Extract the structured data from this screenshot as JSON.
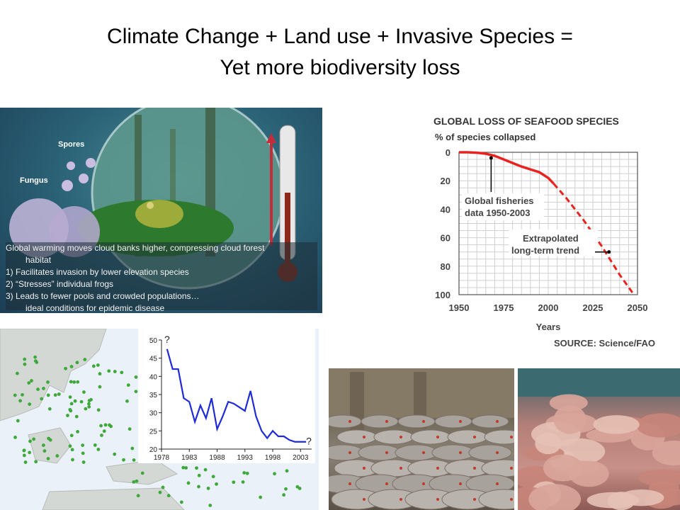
{
  "slide": {
    "title_line1": "Climate Change + Land use + Invasive Species =",
    "title_line2": "Yet more biodiversity loss"
  },
  "frog_panel": {
    "label_spores": "Spores",
    "label_fungus": "Fungus",
    "caption": [
      "Global warming moves cloud banks higher, compressing cloud forest",
      "habitat",
      "1)      Facilitates invasion by lower elevation species",
      "2)      “Stresses” individual frogs",
      "3)      Leads to fewer pools and crowded populations…",
      "         ideal conditions for epidemic disease"
    ]
  },
  "chart_data": [
    {
      "type": "line",
      "title": "GLOBAL LOSS OF SEAFOOD SPECIES",
      "ylabel": "% of species collapsed",
      "xlabel": "Years",
      "source": "SOURCE: Science/FAO",
      "x_ticks": [
        "1950",
        "1975",
        "2000",
        "2025",
        "2050"
      ],
      "y_ticks": [
        "0",
        "20",
        "40",
        "60",
        "80",
        "100"
      ],
      "xlim": [
        1950,
        2050
      ],
      "ylim": [
        0,
        100
      ],
      "y_inverted": true,
      "grid": true,
      "annotations": [
        {
          "text_lines": [
            "Global fisheries",
            "data 1950-2003"
          ],
          "x": 1968,
          "y": 4
        },
        {
          "text_lines": [
            "Extrapolated",
            "long-term trend"
          ],
          "x": 2034,
          "y": 75
        }
      ],
      "series": [
        {
          "name": "",
          "style": "solid",
          "color": "#e8231f",
          "x": [
            1950,
            1955,
            1960,
            1965,
            1970,
            1975,
            1980,
            1985,
            1990,
            1995,
            2000,
            2003
          ],
          "y": [
            0,
            0,
            0.3,
            1,
            2.5,
            5,
            7.5,
            10,
            12,
            14,
            18,
            22
          ]
        },
        {
          "name": "",
          "style": "dashed",
          "color": "#e8231f",
          "x": [
            2003,
            2010,
            2020,
            2030,
            2040,
            2048
          ],
          "y": [
            22,
            32,
            48,
            66,
            86,
            100
          ]
        }
      ]
    },
    {
      "type": "line",
      "title": "",
      "x_ticks": [
        "1978",
        "1983",
        "1988",
        "1993",
        "1998",
        "2003"
      ],
      "y_ticks": [
        "20",
        "25",
        "30",
        "35",
        "40",
        "45",
        "50"
      ],
      "xlim": [
        1978,
        2005
      ],
      "ylim": [
        20,
        50
      ],
      "grid": false,
      "annotations": [
        {
          "text": "?",
          "x": 1979,
          "y": 50
        },
        {
          "text": "?",
          "x": 2004.5,
          "y": 22
        }
      ],
      "series": [
        {
          "name": "",
          "color": "#1f2bd6",
          "x": [
            1979,
            1980,
            1981,
            1982,
            1983,
            1984,
            1985,
            1986,
            1987,
            1988,
            1989,
            1990,
            1991,
            1992,
            1993,
            1994,
            1995,
            1996,
            1997,
            1998,
            1999,
            2000,
            2001,
            2002,
            2003,
            2004
          ],
          "y": [
            47.5,
            42,
            42,
            34,
            33,
            27.5,
            32,
            28.5,
            34,
            25.5,
            29,
            33,
            32.5,
            31.5,
            30.5,
            36,
            29,
            25,
            23,
            25,
            23.5,
            23.5,
            22.5,
            22,
            22,
            22
          ]
        }
      ]
    }
  ],
  "colors": {
    "seafood_line": "#e8231f",
    "coral_line": "#1f2bd6",
    "map_dots": "#3ea83a",
    "land": "#cfd4cf",
    "sea": "#e9f0f7"
  }
}
